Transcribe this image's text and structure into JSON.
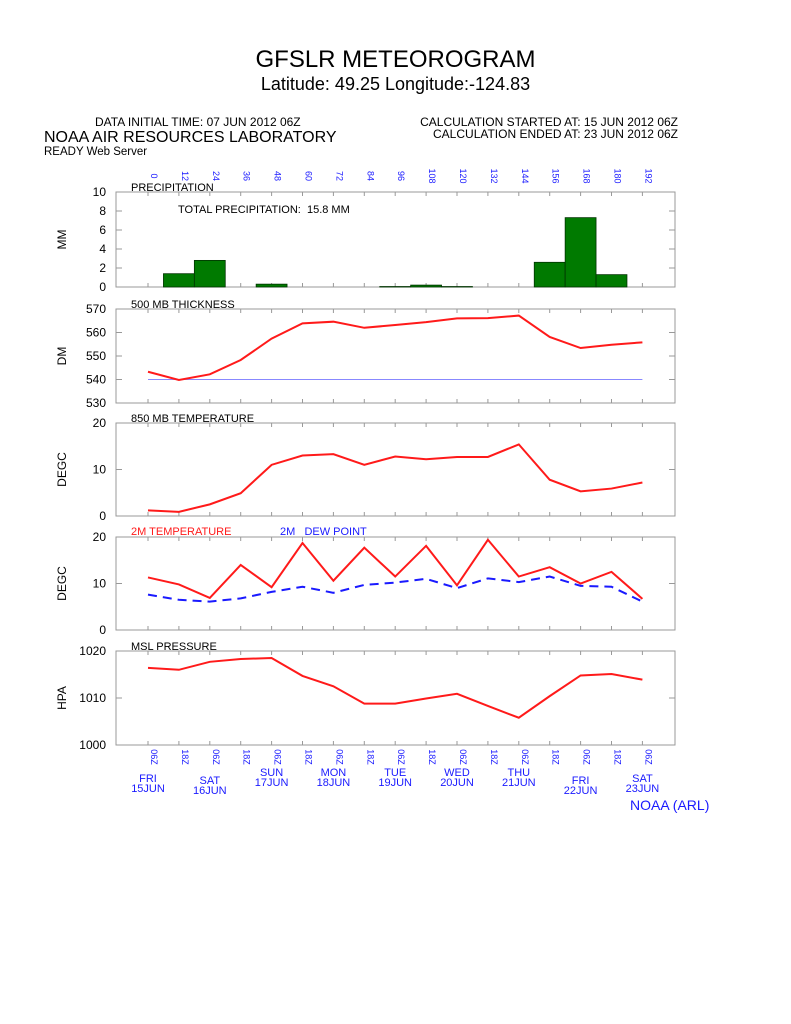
{
  "header": {
    "title": "GFSLR METEOROGRAM",
    "subtitle": "Latitude: 49.25 Longitude:-124.83",
    "initial_time": "DATA INITIAL TIME: 07 JUN 2012 06Z",
    "organization": "NOAA AIR RESOURCES LABORATORY",
    "server": "READY Web Server",
    "calc_started": "CALCULATION STARTED AT: 15 JUN 2012 06Z",
    "calc_ended": "CALCULATION ENDED AT: 23 JUN 2012 06Z"
  },
  "footer": "NOAA (ARL)",
  "colors": {
    "red": "#ff1a1a",
    "blue": "#1a1aff",
    "green": "#007a00",
    "grid": "#999999",
    "ref": "#8888ff"
  },
  "chart_data": {
    "forecast_hours": [
      "0",
      "12",
      "24",
      "36",
      "48",
      "60",
      "72",
      "84",
      "96",
      "108",
      "120",
      "132",
      "144",
      "156",
      "168",
      "180",
      "192"
    ],
    "time_labels": [
      "06Z",
      "18Z",
      "06Z",
      "18Z",
      "06Z",
      "18Z",
      "06Z",
      "18Z",
      "06Z",
      "18Z",
      "06Z",
      "18Z",
      "06Z",
      "18Z",
      "06Z",
      "18Z",
      "06Z"
    ],
    "day_labels": [
      {
        "dow": "FRI",
        "date": "15JUN",
        "x": 0
      },
      {
        "dow": "SAT",
        "date": "16JUN",
        "x": 2
      },
      {
        "dow": "SUN",
        "date": "17JUN",
        "x": 4
      },
      {
        "dow": "MON",
        "date": "18JUN",
        "x": 6
      },
      {
        "dow": "TUE",
        "date": "19JUN",
        "x": 8
      },
      {
        "dow": "WED",
        "date": "20JUN",
        "x": 10
      },
      {
        "dow": "THU",
        "date": "21JUN",
        "x": 12
      },
      {
        "dow": "FRI",
        "date": "22JUN",
        "x": 14
      },
      {
        "dow": "SAT",
        "date": "23JUN",
        "x": 16
      }
    ],
    "panels": [
      {
        "type": "bar",
        "title": "PRECIPITATION",
        "ylabel": "MM",
        "ylim": [
          0,
          10
        ],
        "yticks": [
          0,
          2,
          4,
          6,
          8,
          10
        ],
        "annotation": "TOTAL PRECIPITATION:  15.8 MM",
        "bars": [
          {
            "x0": 0.5,
            "x1": 1.5,
            "value": 1.4
          },
          {
            "x0": 1.5,
            "x1": 2.5,
            "value": 2.8
          },
          {
            "x0": 3.5,
            "x1": 4.5,
            "value": 0.3
          },
          {
            "x0": 7.5,
            "x1": 8.5,
            "value": 0.05
          },
          {
            "x0": 8.5,
            "x1": 9.5,
            "value": 0.2
          },
          {
            "x0": 9.5,
            "x1": 10.5,
            "value": 0.05
          },
          {
            "x0": 12.5,
            "x1": 13.5,
            "value": 2.6
          },
          {
            "x0": 13.5,
            "x1": 14.5,
            "value": 7.3
          },
          {
            "x0": 14.5,
            "x1": 15.5,
            "value": 1.3
          }
        ]
      },
      {
        "type": "line",
        "title": "500 MB  THICKNESS",
        "ylabel": "DM",
        "ylim": [
          530,
          570
        ],
        "yticks": [
          530,
          540,
          550,
          560,
          570
        ],
        "reference_line": 540,
        "series": [
          {
            "color": "red",
            "dashed": false,
            "values": [
              543.3,
              539.8,
              542.2,
              548.3,
              557.4,
              563.9,
              564.6,
              562.0,
              563.2,
              564.4,
              566.0,
              566.1,
              567.2,
              558.1,
              553.4,
              554.8,
              555.8
            ]
          }
        ]
      },
      {
        "type": "line",
        "title": "850 MB  TEMPERATURE",
        "ylabel": "DEGC",
        "ylim": [
          0,
          20
        ],
        "yticks": [
          0,
          10,
          20
        ],
        "series": [
          {
            "color": "red",
            "dashed": false,
            "values": [
              1.2,
              0.9,
              2.5,
              4.9,
              11.0,
              13.0,
              13.3,
              11.0,
              12.8,
              12.2,
              12.7,
              12.7,
              15.4,
              7.8,
              5.3,
              5.9,
              7.2
            ]
          }
        ]
      },
      {
        "type": "line",
        "title": "",
        "ylabel": "DEGC",
        "ylim": [
          0,
          20
        ],
        "yticks": [
          0,
          10,
          20
        ],
        "legend": [
          {
            "name": "2M TEMPERATURE",
            "color": "red"
          },
          {
            "name": "2M   DEW POINT",
            "color": "blue"
          }
        ],
        "series": [
          {
            "name": "2M TEMPERATURE",
            "color": "red",
            "dashed": false,
            "values": [
              11.3,
              9.8,
              6.9,
              14.0,
              9.2,
              18.7,
              10.6,
              17.7,
              11.5,
              18.1,
              9.6,
              19.4,
              11.5,
              13.5,
              10.0,
              12.5,
              6.7
            ]
          },
          {
            "name": "2M   DEW POINT",
            "color": "blue",
            "dashed": true,
            "values": [
              7.6,
              6.5,
              6.1,
              6.8,
              8.2,
              9.3,
              8.0,
              9.7,
              10.2,
              11.0,
              9.0,
              11.1,
              10.3,
              11.5,
              9.5,
              9.3,
              6.1
            ]
          }
        ]
      },
      {
        "type": "line",
        "title": "MSL PRESSURE",
        "ylabel": "HPA",
        "ylim": [
          1000,
          1020
        ],
        "yticks": [
          1000,
          1010,
          1020
        ],
        "series": [
          {
            "color": "red",
            "dashed": false,
            "values": [
              1016.4,
              1016.0,
              1017.7,
              1018.3,
              1018.5,
              1014.7,
              1012.5,
              1008.8,
              1008.8,
              1009.9,
              1010.9,
              1008.3,
              1005.8,
              1010.4,
              1014.8,
              1015.1,
              1013.9
            ]
          }
        ]
      }
    ]
  }
}
